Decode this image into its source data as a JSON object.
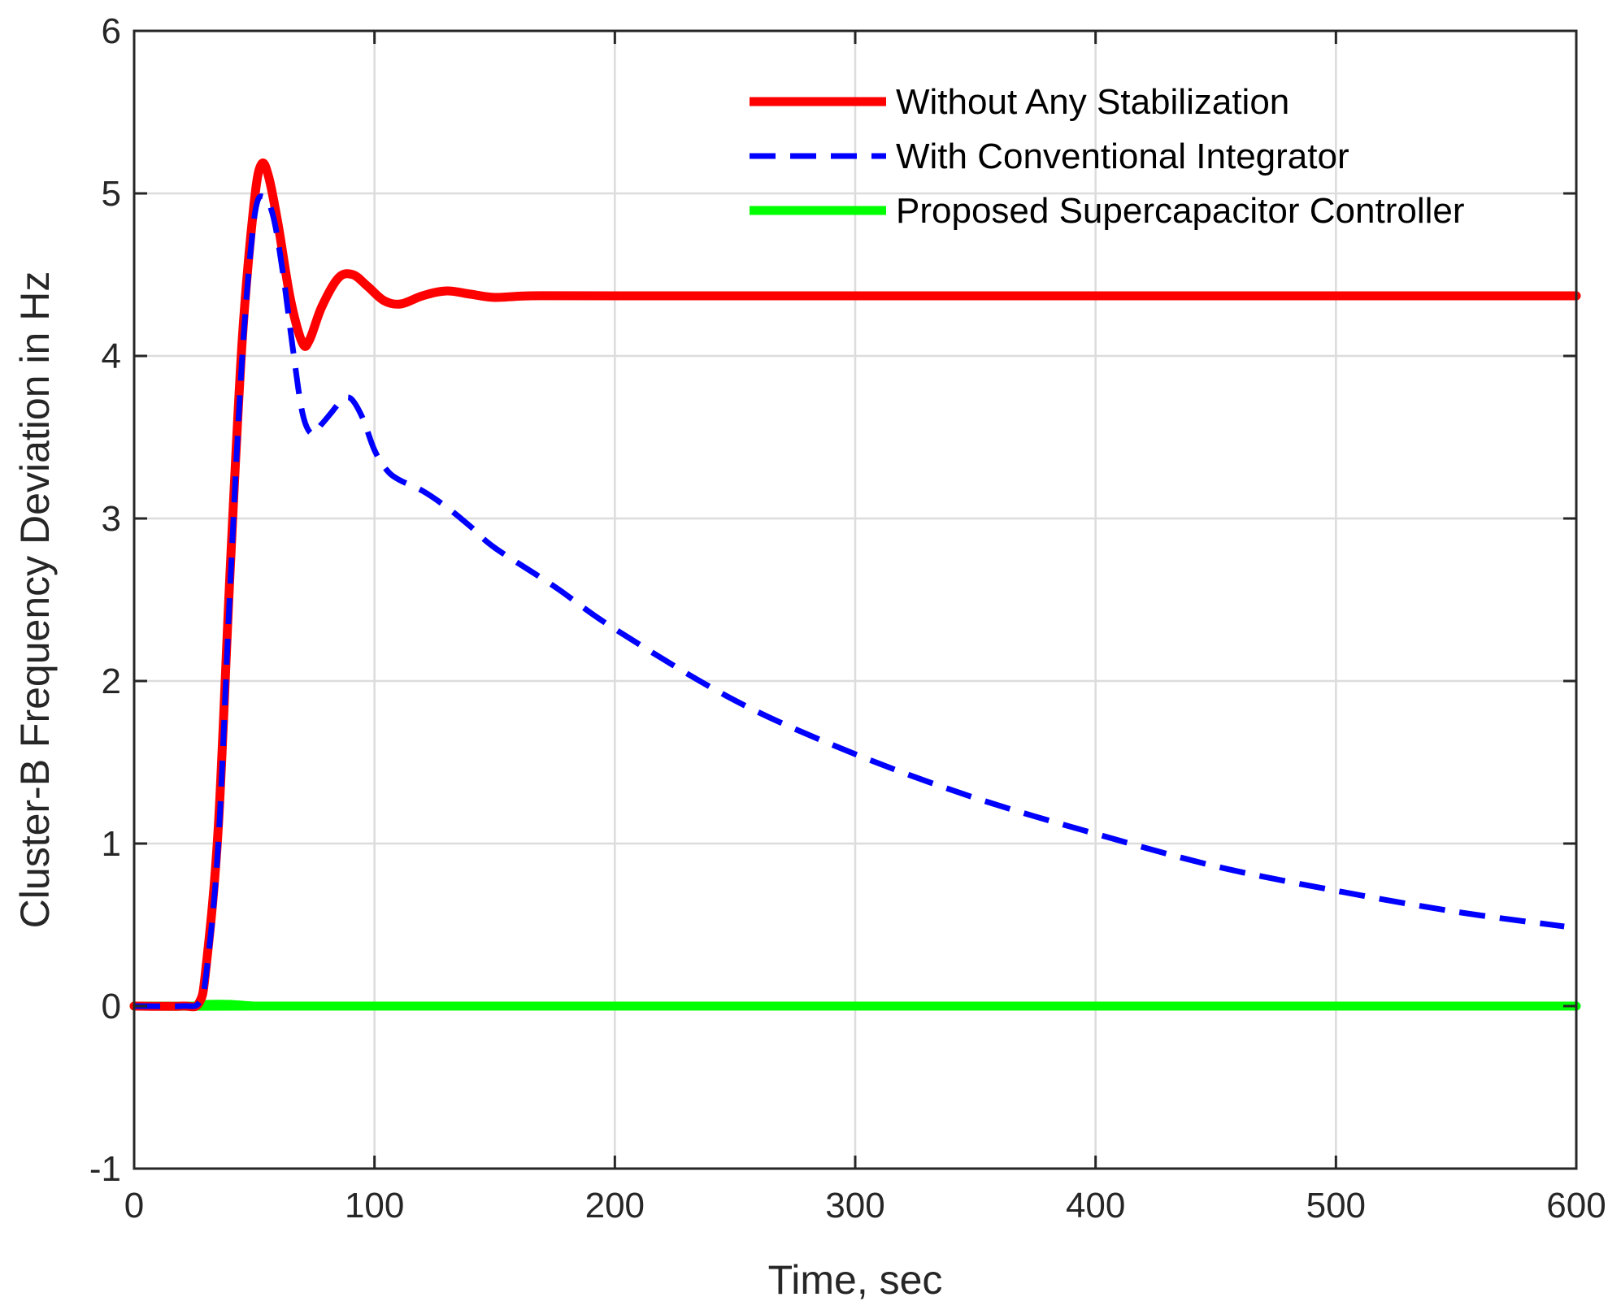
{
  "chart_data": {
    "type": "line",
    "title": "",
    "xlabel": "Time, sec",
    "ylabel": "Cluster-B Frequency Deviation in Hz",
    "xlim": [
      0,
      600
    ],
    "ylim": [
      -1,
      6
    ],
    "xticks": [
      0,
      100,
      200,
      300,
      400,
      500,
      600
    ],
    "yticks": [
      -1,
      0,
      1,
      2,
      3,
      4,
      5,
      6
    ],
    "xtick_labels": [
      "0",
      "100",
      "200",
      "300",
      "400",
      "500",
      "600"
    ],
    "ytick_labels": [
      "-1",
      "0",
      "1",
      "2",
      "3",
      "4",
      "5",
      "6"
    ],
    "grid": true,
    "legend_position": "top-right",
    "series": [
      {
        "name": "Without Any Stabilization",
        "color": "#ff0000",
        "style": "solid",
        "x": [
          0,
          20,
          27,
          30,
          35,
          40,
          45,
          50,
          53,
          56,
          60,
          65,
          70,
          73,
          78,
          85,
          91,
          97,
          104,
          111,
          120,
          130,
          140,
          150,
          165,
          200,
          300,
          400,
          500,
          600
        ],
        "y": [
          0,
          0,
          0.02,
          0.25,
          1.1,
          2.7,
          4.1,
          4.95,
          5.18,
          5.1,
          4.8,
          4.35,
          4.08,
          4.1,
          4.3,
          4.48,
          4.5,
          4.43,
          4.34,
          4.32,
          4.37,
          4.4,
          4.38,
          4.36,
          4.37,
          4.37,
          4.37,
          4.37,
          4.37,
          4.37
        ]
      },
      {
        "name": "With Conventional Integrator",
        "color": "#0000ff",
        "style": "dashed",
        "x": [
          0,
          20,
          27,
          30,
          35,
          40,
          45,
          50,
          54,
          58,
          62,
          66,
          70,
          74,
          78,
          82,
          86,
          90,
          95,
          100,
          105,
          110,
          120,
          130,
          140,
          150,
          175,
          200,
          250,
          300,
          350,
          400,
          450,
          500,
          550,
          595
        ],
        "y": [
          0,
          0,
          0.02,
          0.2,
          1.0,
          2.6,
          4.0,
          4.85,
          4.98,
          4.85,
          4.5,
          4.05,
          3.65,
          3.52,
          3.58,
          3.65,
          3.72,
          3.74,
          3.62,
          3.42,
          3.3,
          3.24,
          3.17,
          3.07,
          2.95,
          2.82,
          2.58,
          2.32,
          1.88,
          1.55,
          1.28,
          1.06,
          0.86,
          0.71,
          0.58,
          0.49
        ]
      },
      {
        "name": "Proposed Supercapacitor Controller",
        "color": "#00ff00",
        "style": "solid",
        "x": [
          0,
          25,
          30,
          40,
          50,
          60,
          600
        ],
        "y": [
          0,
          0,
          0.01,
          0.01,
          0.0,
          0.0,
          0.0
        ]
      }
    ]
  }
}
